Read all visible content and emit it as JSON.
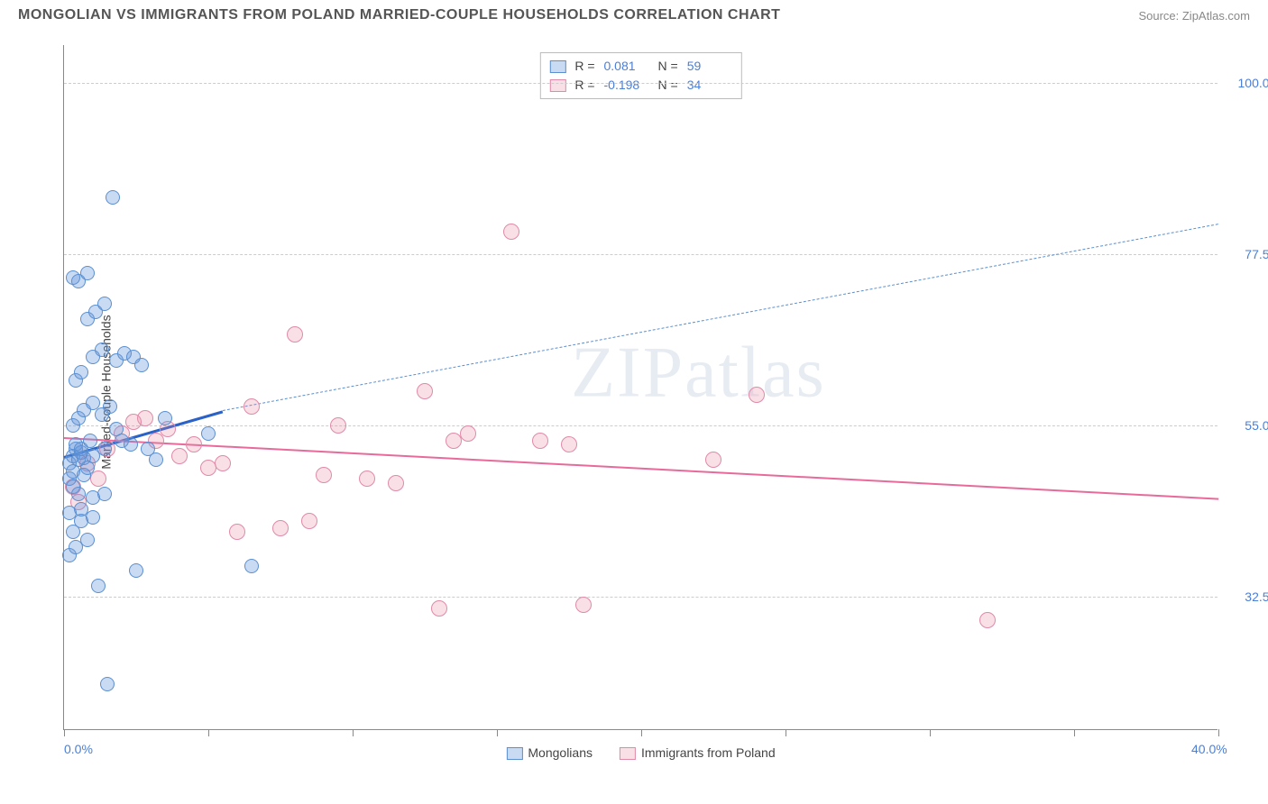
{
  "title": "MONGOLIAN VS IMMIGRANTS FROM POLAND MARRIED-COUPLE HOUSEHOLDS CORRELATION CHART",
  "source_label": "Source: ",
  "source_name": "ZipAtlas.com",
  "y_axis_title": "Married-couple Households",
  "watermark": {
    "zip": "ZIP",
    "atlas": "atlas"
  },
  "chart": {
    "type": "scatter",
    "background_color": "#ffffff",
    "grid_color": "#cccccc",
    "axis_color": "#888888",
    "label_color": "#4a7fd8",
    "xlim": [
      0,
      40
    ],
    "ylim": [
      15,
      105
    ],
    "x_ticks": [
      0,
      5,
      10,
      15,
      20,
      25,
      30,
      35,
      40
    ],
    "x_tick_labels": {
      "0": "0.0%",
      "40": "40.0%"
    },
    "y_gridlines": [
      32.5,
      55.0,
      77.5,
      100.0
    ],
    "y_tick_labels": [
      "32.5%",
      "55.0%",
      "77.5%",
      "100.0%"
    ],
    "grid_dash": "dashed"
  },
  "series": {
    "blue": {
      "name": "Mongolians",
      "fill_color": "rgba(100,150,220,0.35)",
      "stroke_color": "#5a8fd0",
      "marker_radius": 8,
      "stats": {
        "r_label": "R =",
        "r_value": "0.081",
        "n_label": "N =",
        "n_value": "59"
      },
      "trend": {
        "x1": 0,
        "y1": 51,
        "x2_solid": 5.5,
        "y2_solid": 57,
        "x2_dash": 40,
        "y2_dash": 81.5,
        "solid_color": "#2a62c8",
        "solid_width": 3,
        "dash_color": "#5a8fd0",
        "dash_width": 1.5
      },
      "points": [
        [
          0.2,
          50
        ],
        [
          0.3,
          51
        ],
        [
          0.4,
          52
        ],
        [
          0.5,
          50.5
        ],
        [
          0.3,
          49
        ],
        [
          0.6,
          51.5
        ],
        [
          0.7,
          50.8
        ],
        [
          0.4,
          52.5
        ],
        [
          0.2,
          48
        ],
        [
          0.3,
          47
        ],
        [
          0.5,
          46
        ],
        [
          0.8,
          49.5
        ],
        [
          0.6,
          52
        ],
        [
          0.9,
          53
        ],
        [
          1.0,
          51
        ],
        [
          0.7,
          48.5
        ],
        [
          0.2,
          38
        ],
        [
          0.4,
          39
        ],
        [
          0.8,
          40
        ],
        [
          1.2,
          34
        ],
        [
          2.5,
          36
        ],
        [
          0.6,
          44
        ],
        [
          1.0,
          45.5
        ],
        [
          1.4,
          46
        ],
        [
          0.3,
          55
        ],
        [
          0.5,
          56
        ],
        [
          0.7,
          57
        ],
        [
          1.0,
          58
        ],
        [
          1.3,
          56.5
        ],
        [
          1.6,
          57.5
        ],
        [
          0.4,
          61
        ],
        [
          0.6,
          62
        ],
        [
          1.0,
          64
        ],
        [
          1.3,
          65
        ],
        [
          1.8,
          63.5
        ],
        [
          2.1,
          64.5
        ],
        [
          2.4,
          64
        ],
        [
          2.7,
          63
        ],
        [
          0.8,
          69
        ],
        [
          1.1,
          70
        ],
        [
          1.4,
          71
        ],
        [
          0.5,
          74
        ],
        [
          0.8,
          75
        ],
        [
          0.3,
          74.5
        ],
        [
          1.7,
          85
        ],
        [
          0.3,
          41
        ],
        [
          0.6,
          42.5
        ],
        [
          1.0,
          43
        ],
        [
          1.4,
          52
        ],
        [
          1.8,
          54.5
        ],
        [
          2.0,
          53
        ],
        [
          2.3,
          52.5
        ],
        [
          2.9,
          52
        ],
        [
          3.2,
          50.5
        ],
        [
          3.5,
          56
        ],
        [
          0.2,
          43.5
        ],
        [
          1.5,
          21
        ],
        [
          6.5,
          36.5
        ],
        [
          5.0,
          54
        ]
      ]
    },
    "pink": {
      "name": "Immigrants from Poland",
      "fill_color": "rgba(230,130,160,0.25)",
      "stroke_color": "#e08aa8",
      "marker_radius": 9,
      "stats": {
        "r_label": "R =",
        "r_value": "-0.198",
        "n_label": "N =",
        "n_value": "34"
      },
      "trend": {
        "x1": 0,
        "y1": 53.5,
        "x2": 40,
        "y2": 45.5,
        "color": "#e86a9a",
        "width": 2.5
      },
      "points": [
        [
          0.3,
          47
        ],
        [
          0.5,
          45
        ],
        [
          0.8,
          50
        ],
        [
          1.2,
          48
        ],
        [
          1.5,
          52
        ],
        [
          2.0,
          54
        ],
        [
          2.4,
          55.5
        ],
        [
          2.8,
          56
        ],
        [
          3.2,
          53
        ],
        [
          3.6,
          54.5
        ],
        [
          4.0,
          51
        ],
        [
          4.5,
          52.5
        ],
        [
          5.0,
          49.5
        ],
        [
          5.5,
          50
        ],
        [
          6.0,
          41
        ],
        [
          6.5,
          57.5
        ],
        [
          7.5,
          41.5
        ],
        [
          8.0,
          67
        ],
        [
          8.5,
          42.5
        ],
        [
          9.0,
          48.5
        ],
        [
          9.5,
          55
        ],
        [
          10.5,
          48
        ],
        [
          11.5,
          47.5
        ],
        [
          12.5,
          59.5
        ],
        [
          13.5,
          53
        ],
        [
          14.0,
          54
        ],
        [
          15.5,
          80.5
        ],
        [
          16.5,
          53
        ],
        [
          17.5,
          52.5
        ],
        [
          22.5,
          50.5
        ],
        [
          24.0,
          59
        ],
        [
          13.0,
          31
        ],
        [
          32.0,
          29.5
        ],
        [
          18.0,
          31.5
        ]
      ]
    }
  },
  "legend": {
    "items": [
      {
        "key": "blue",
        "label": "Mongolians"
      },
      {
        "key": "pink",
        "label": "Immigrants from Poland"
      }
    ]
  }
}
